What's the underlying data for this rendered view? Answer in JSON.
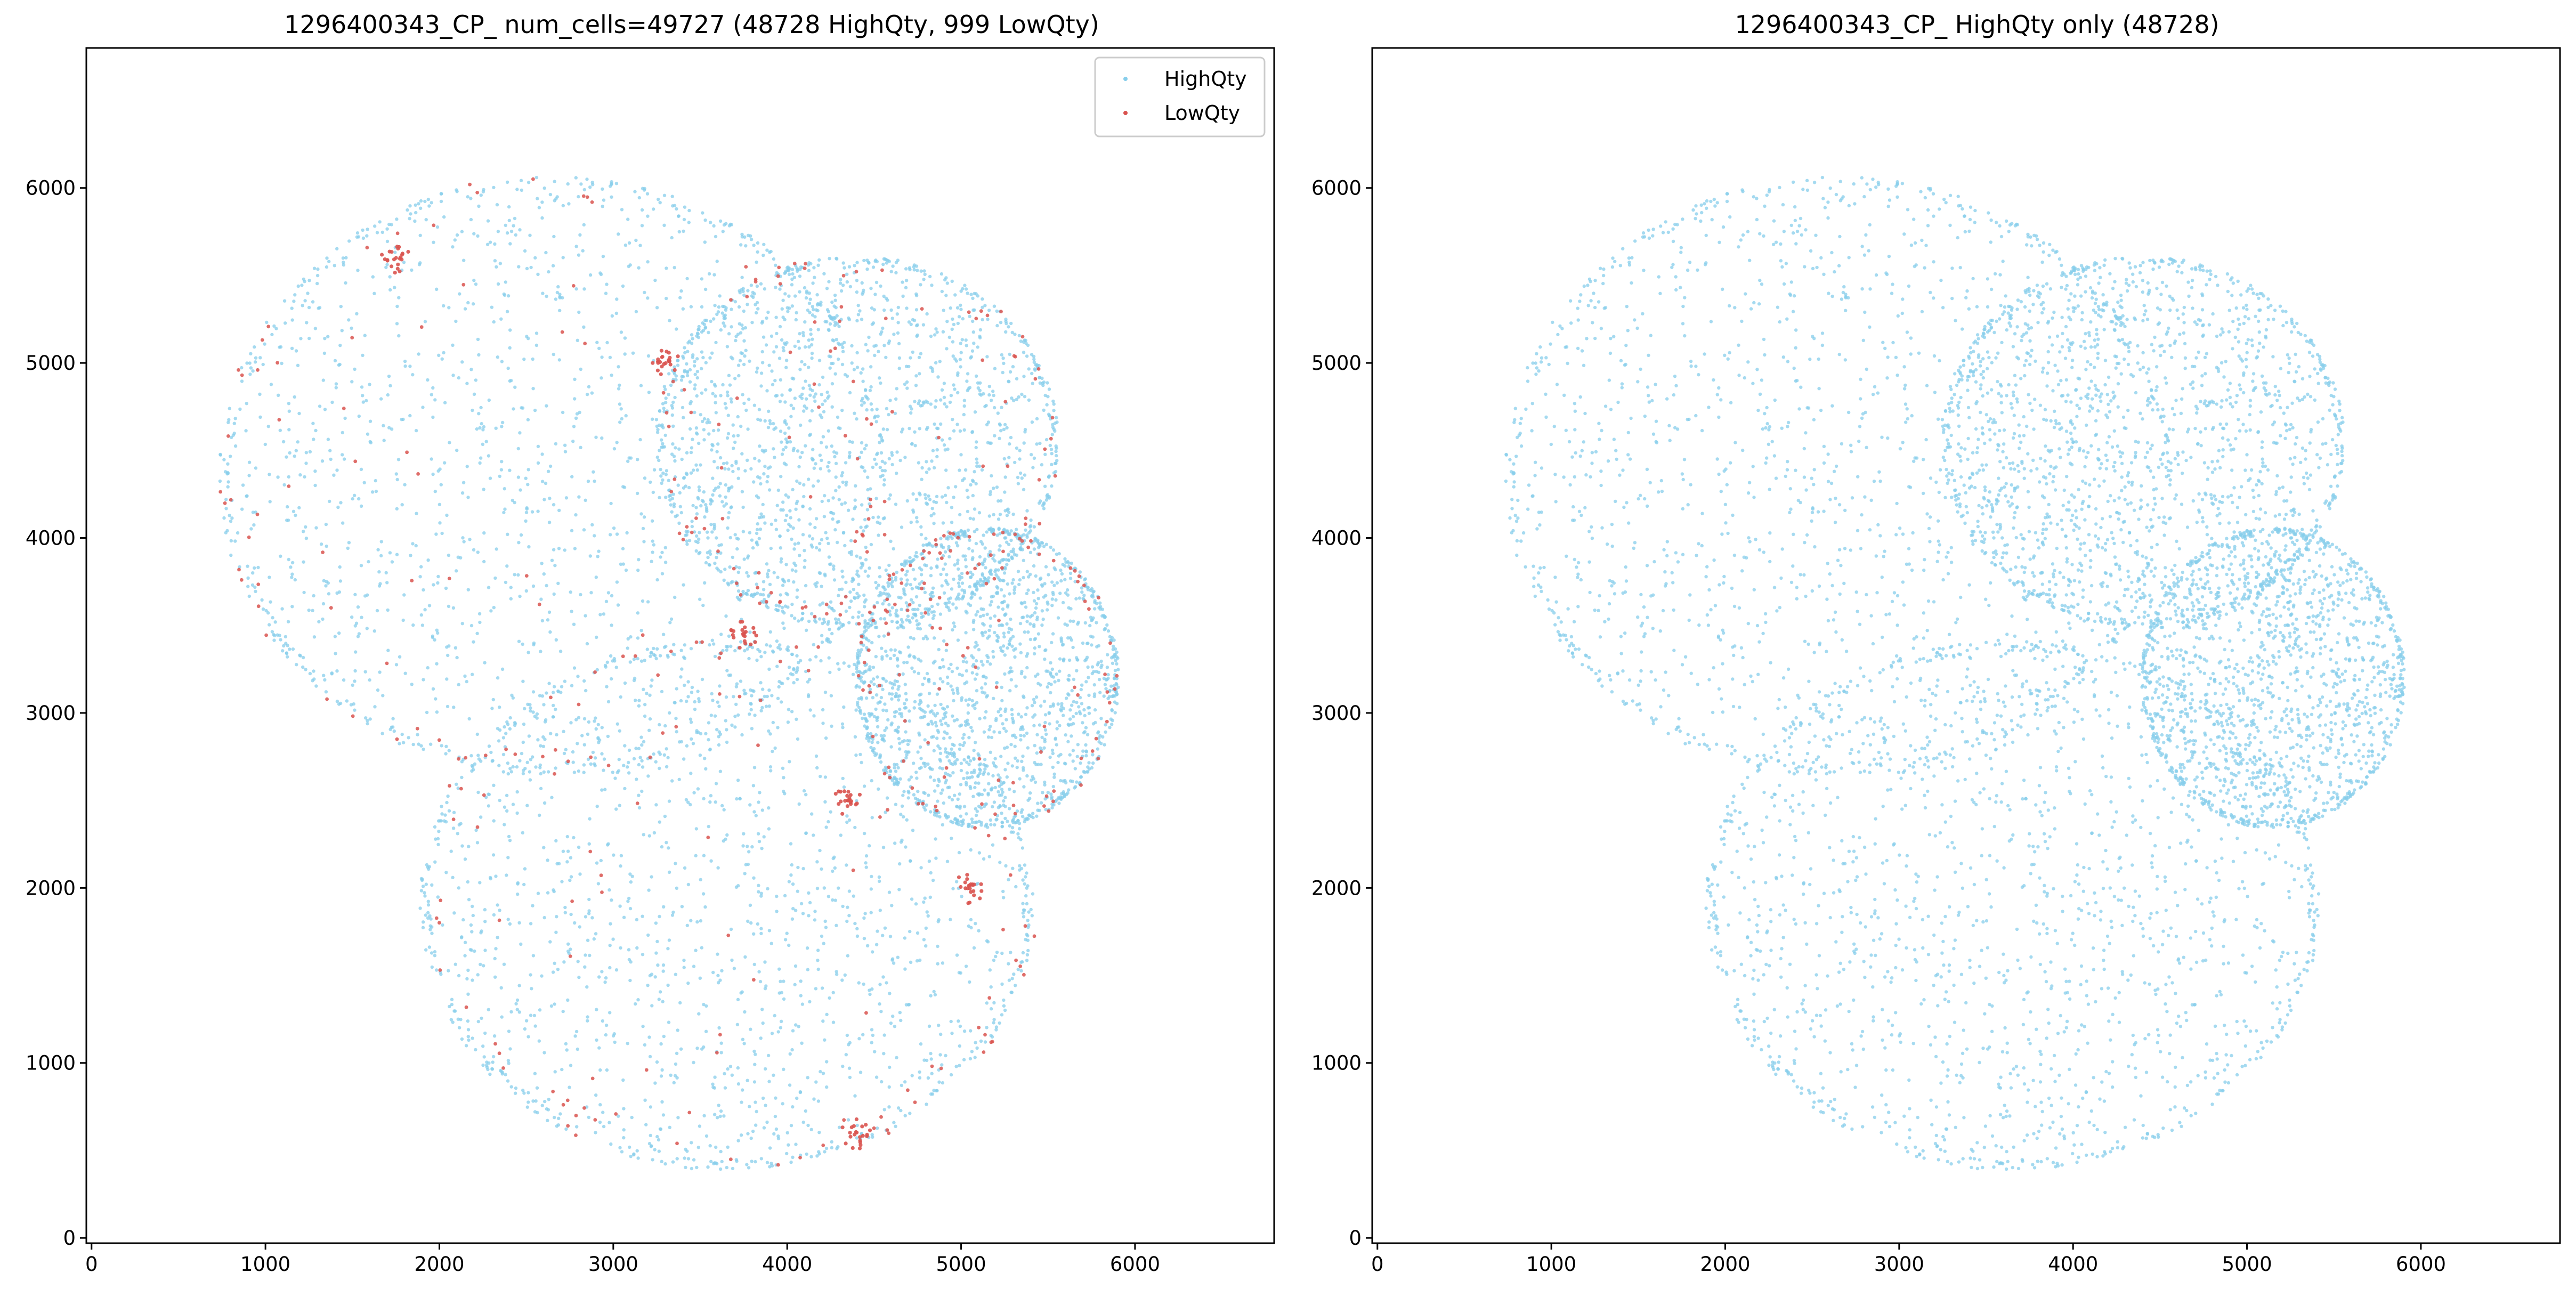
{
  "figure": {
    "background": "#ffffff"
  },
  "chart_data": [
    {
      "type": "scatter",
      "title": "1296400343_CP_ num_cells=49727 (48728 HighQty, 999 LowQty)",
      "xlabel": "",
      "ylabel": "",
      "xlim": [
        -30,
        6800
      ],
      "ylim": [
        -30,
        6800
      ],
      "xticks": [
        0,
        1000,
        2000,
        3000,
        4000,
        5000,
        6000
      ],
      "yticks": [
        0,
        1000,
        2000,
        3000,
        4000,
        5000,
        6000
      ],
      "grid": false,
      "legend_position": "top-right",
      "num_cells": 49727,
      "series": [
        {
          "name": "HighQty",
          "count": 48728,
          "color": "#87ceeb"
        },
        {
          "name": "LowQty",
          "count": 999,
          "color": "#d9534f"
        }
      ],
      "regions": [
        {
          "name": "upper-left lobe",
          "cx": 2650,
          "cy": 4350,
          "rx": 1900,
          "ry": 1700
        },
        {
          "name": "upper-right lobe",
          "cx": 4400,
          "cy": 4550,
          "rx": 1150,
          "ry": 1050
        },
        {
          "name": "right lobe",
          "cx": 5150,
          "cy": 3200,
          "rx": 750,
          "ry": 850
        },
        {
          "name": "bottom lobe",
          "cx": 3650,
          "cy": 1900,
          "rx": 1750,
          "ry": 1500
        }
      ],
      "lowqty_hotspots": [
        {
          "x": 1750,
          "y": 5600
        },
        {
          "x": 3750,
          "y": 3450
        },
        {
          "x": 3300,
          "y": 5000
        },
        {
          "x": 4350,
          "y": 2500
        },
        {
          "x": 5050,
          "y": 2000
        },
        {
          "x": 4400,
          "y": 600
        }
      ]
    },
    {
      "type": "scatter",
      "title": "1296400343_CP_ HighQty only (48728)",
      "xlabel": "",
      "ylabel": "",
      "xlim": [
        -30,
        6800
      ],
      "ylim": [
        -30,
        6800
      ],
      "xticks": [
        0,
        1000,
        2000,
        3000,
        4000,
        5000,
        6000
      ],
      "yticks": [
        0,
        1000,
        2000,
        3000,
        4000,
        5000,
        6000
      ],
      "grid": false,
      "series": [
        {
          "name": "HighQty",
          "count": 48728,
          "color": "#87ceeb"
        }
      ],
      "regions": [
        {
          "name": "upper-left lobe",
          "cx": 2650,
          "cy": 4350,
          "rx": 1900,
          "ry": 1700
        },
        {
          "name": "upper-right lobe",
          "cx": 4400,
          "cy": 4550,
          "rx": 1150,
          "ry": 1050
        },
        {
          "name": "right lobe",
          "cx": 5150,
          "cy": 3200,
          "rx": 750,
          "ry": 850
        },
        {
          "name": "bottom lobe",
          "cx": 3650,
          "cy": 1900,
          "rx": 1750,
          "ry": 1500
        }
      ]
    }
  ]
}
